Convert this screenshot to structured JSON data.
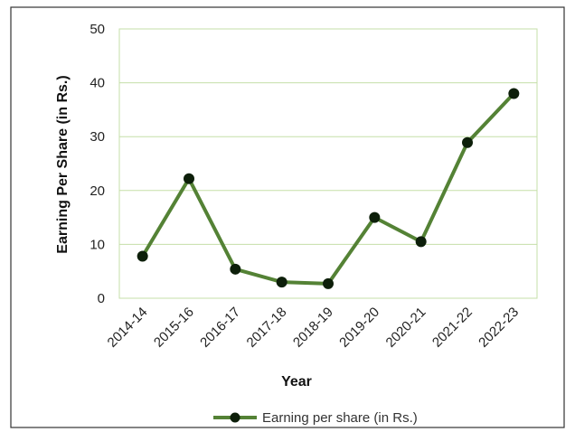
{
  "chart_data": {
    "type": "line",
    "title": "",
    "xlabel": "Year",
    "ylabel": "Earning Per Share (in Rs.)",
    "categories": [
      "2014-14",
      "2015-16",
      "2016-17",
      "2017-18",
      "2018-19",
      "2019-20",
      "2020-21",
      "2021-22",
      "2022-23"
    ],
    "series": [
      {
        "name": "Earning per share (in Rs.)",
        "values": [
          7.8,
          22.2,
          5.4,
          3.0,
          2.7,
          15.0,
          10.5,
          28.9,
          38.0
        ],
        "color": "#548235",
        "marker_color": "#0d1f0a"
      }
    ],
    "ylim": [
      0,
      50
    ],
    "yticks": [
      0,
      10,
      20,
      30,
      40,
      50
    ],
    "grid": true,
    "grid_color": "#c5dfa8",
    "legend_position": "bottom"
  }
}
